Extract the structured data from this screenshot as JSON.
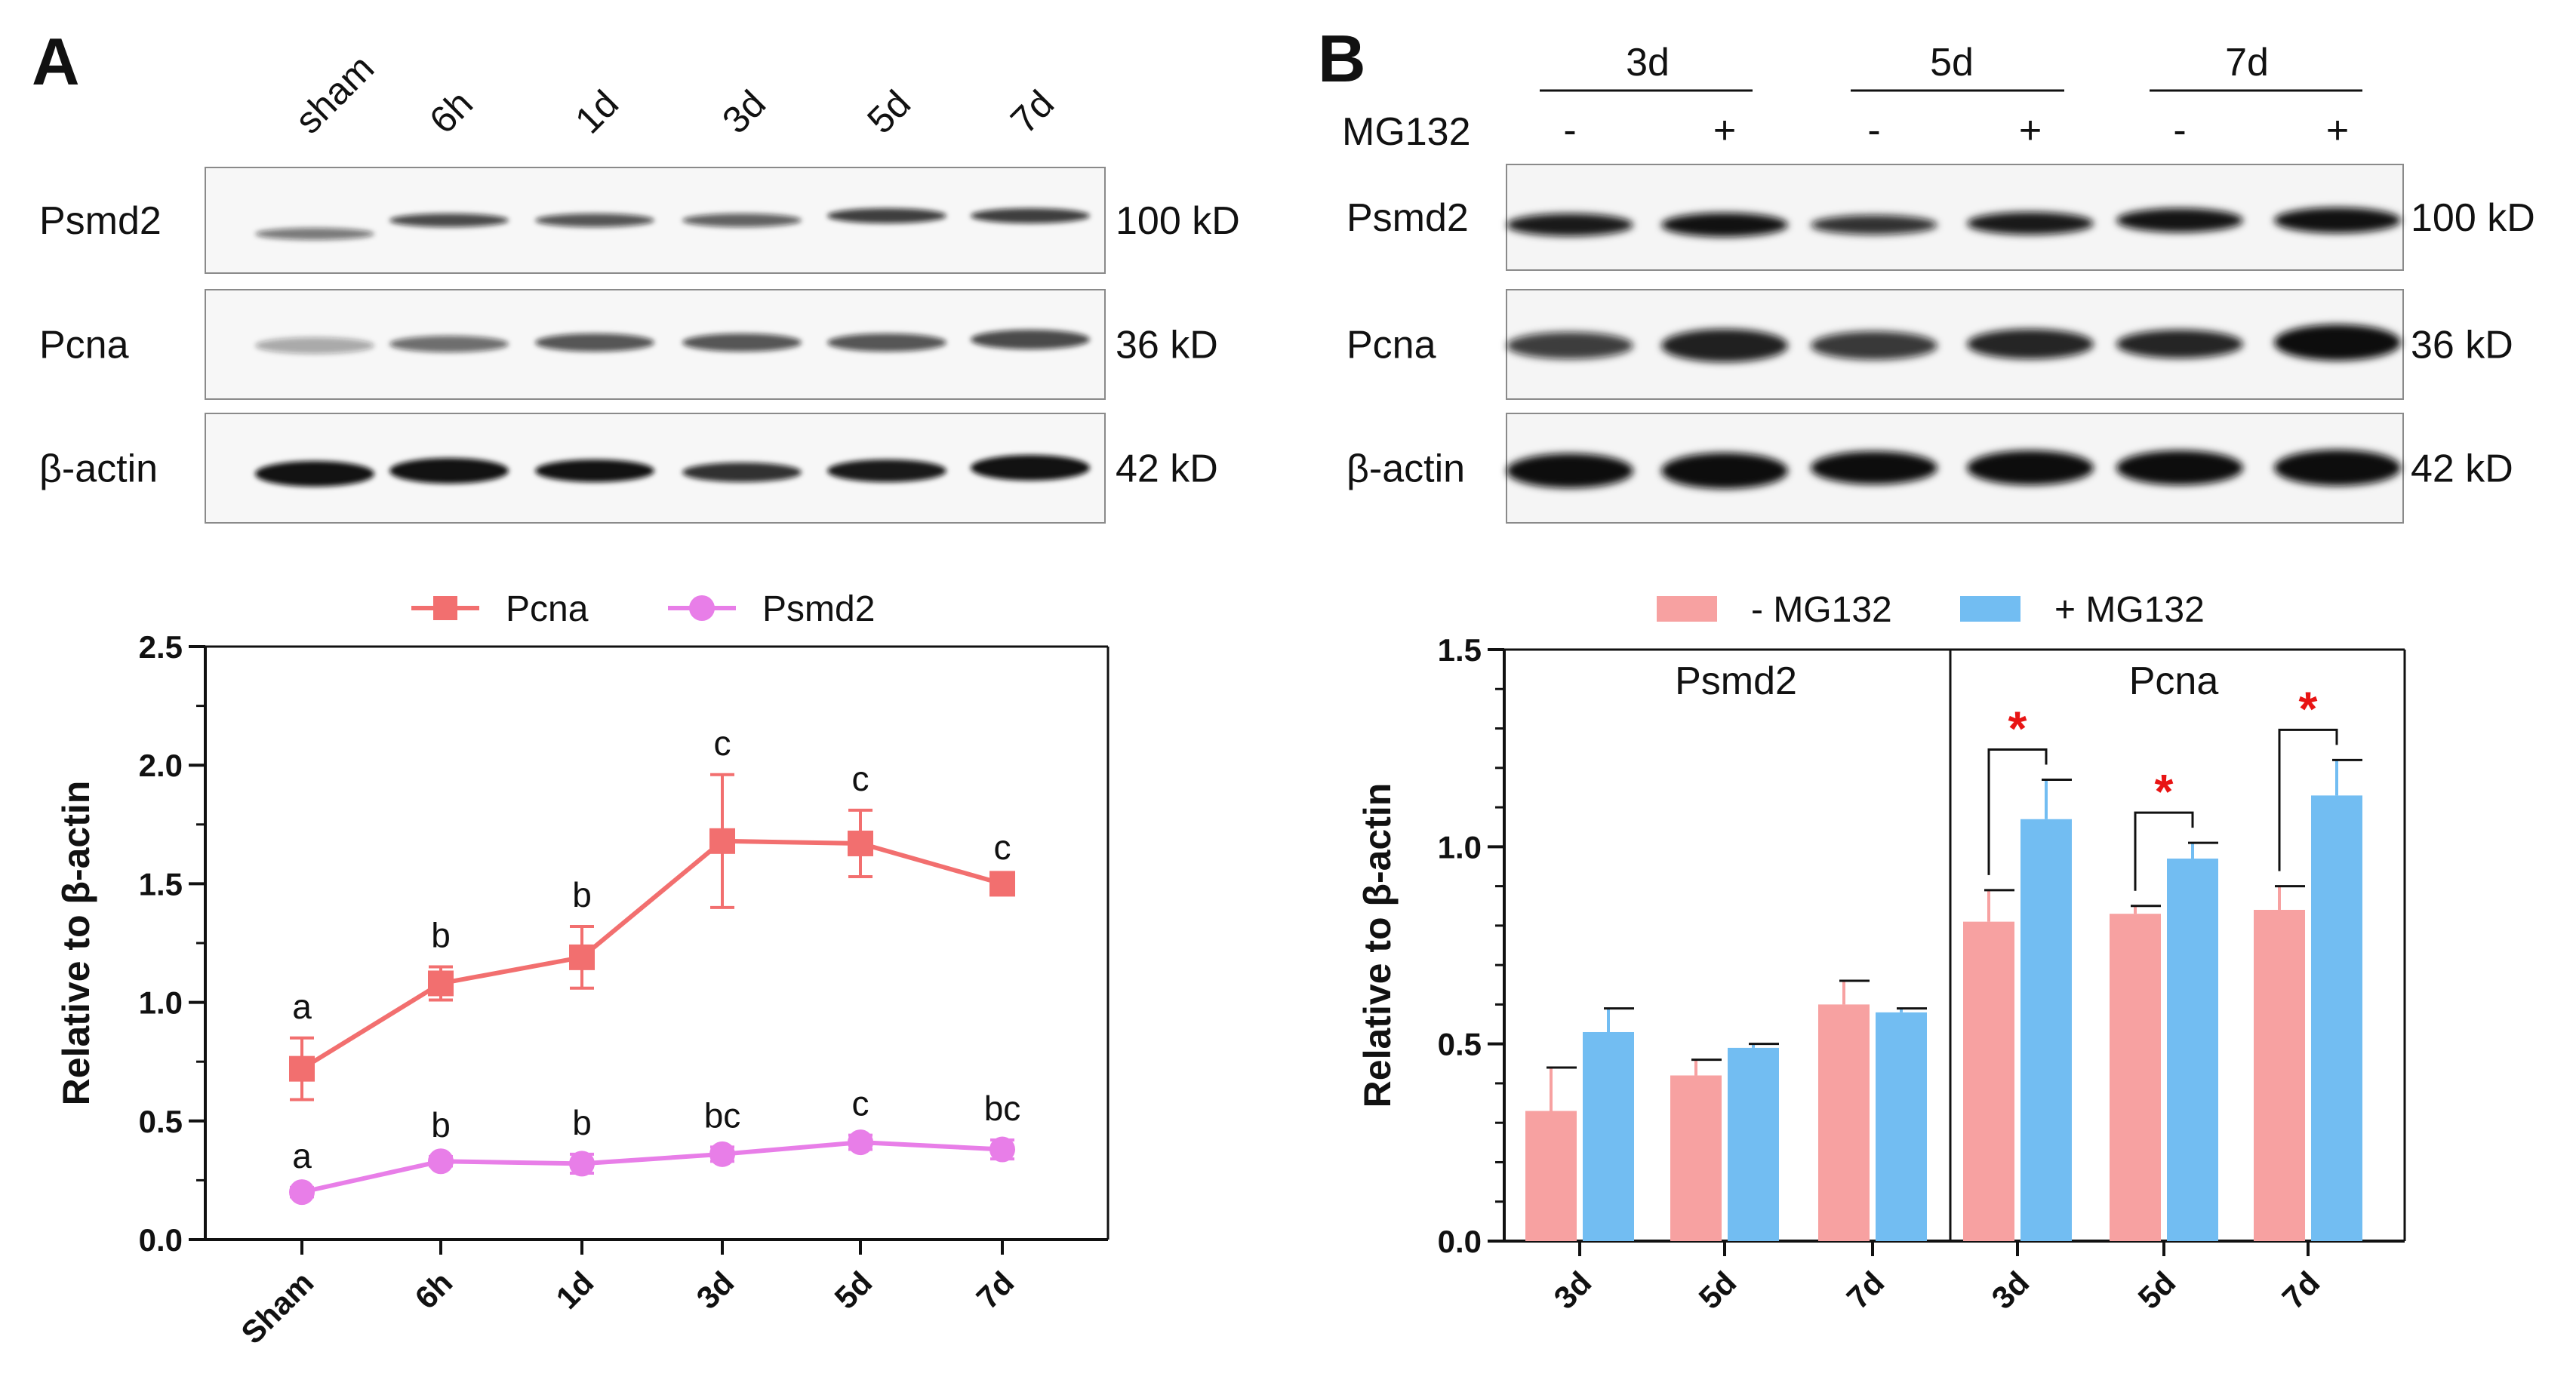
{
  "panels": {
    "A": {
      "letter": "A",
      "blot": {
        "lanes": [
          "sham",
          "6h",
          "1d",
          "3d",
          "5d",
          "7d"
        ],
        "rows": [
          {
            "label": "Psmd2",
            "kd": "100 kD"
          },
          {
            "label": "Pcna",
            "kd": "36 kD"
          },
          {
            "label": "β-actin",
            "kd": "42 kD"
          }
        ]
      }
    },
    "B": {
      "letter": "B",
      "blot": {
        "groups": [
          "3d",
          "5d",
          "7d"
        ],
        "treatment_label": "MG132",
        "treatment_signs": [
          "-",
          "+",
          "-",
          "+",
          "-",
          "+"
        ],
        "rows": [
          {
            "label": "Psmd2",
            "kd": "100 kD"
          },
          {
            "label": "Pcna",
            "kd": "36 kD"
          },
          {
            "label": "β-actin",
            "kd": "42 kD"
          }
        ]
      }
    }
  },
  "chart_data": [
    {
      "type": "line",
      "panel": "A",
      "categories": [
        "Sham",
        "6h",
        "1d",
        "3d",
        "5d",
        "7d"
      ],
      "ylabel": "Relative to β-actin",
      "ylim": [
        0,
        2.5
      ],
      "yticks": [
        "0.0",
        "0.5",
        "1.0",
        "1.5",
        "2.0",
        "2.5"
      ],
      "legend": "top",
      "series": [
        {
          "name": "Pcna",
          "color": "#f26f6f",
          "marker": "square",
          "values": [
            0.72,
            1.08,
            1.19,
            1.68,
            1.67,
            1.5
          ],
          "errors": [
            0.13,
            0.07,
            0.13,
            0.28,
            0.14,
            0.02
          ],
          "labels": [
            "a",
            "b",
            "b",
            "c",
            "c",
            "c"
          ]
        },
        {
          "name": "Psmd2",
          "color": "#e87ee8",
          "marker": "circle",
          "values": [
            0.2,
            0.33,
            0.32,
            0.36,
            0.41,
            0.38
          ],
          "errors": [
            0.02,
            0.02,
            0.04,
            0.03,
            0.03,
            0.04
          ],
          "labels": [
            "a",
            "b",
            "b",
            "bc",
            "c",
            "bc"
          ]
        }
      ]
    },
    {
      "type": "bar",
      "panel": "B",
      "categories": [
        "3d",
        "5d",
        "7d",
        "3d",
        "5d",
        "7d"
      ],
      "groups": [
        "Psmd2",
        "Pcna"
      ],
      "ylabel": "Relative to β-actin",
      "ylim": [
        0,
        1.5
      ],
      "yticks": [
        "0.0",
        "0.5",
        "1.0",
        "1.5"
      ],
      "legend": "top",
      "series": [
        {
          "name": "- MG132",
          "color": "#f7a1a1",
          "values": [
            0.33,
            0.42,
            0.6,
            0.81,
            0.83,
            0.84
          ],
          "errors": [
            0.11,
            0.04,
            0.06,
            0.08,
            0.02,
            0.06
          ]
        },
        {
          "name": "+ MG132",
          "color": "#72bdf2",
          "values": [
            0.53,
            0.49,
            0.58,
            1.07,
            0.97,
            1.13
          ],
          "errors": [
            0.06,
            0.01,
            0.01,
            0.1,
            0.04,
            0.09
          ]
        }
      ],
      "significance": {
        "symbol": "*",
        "color": "#e81414",
        "category_indices": [
          3,
          4,
          5
        ]
      }
    }
  ]
}
